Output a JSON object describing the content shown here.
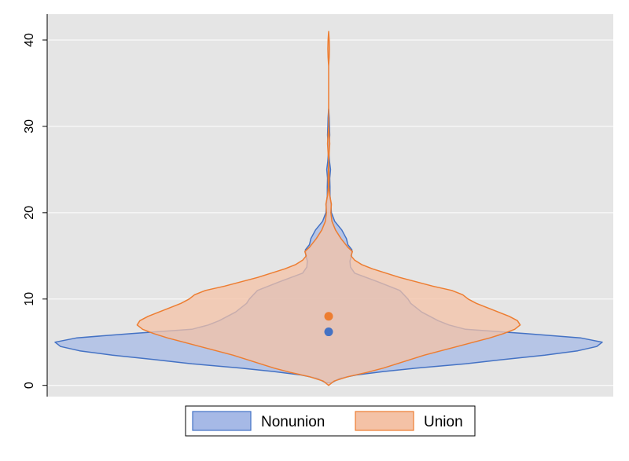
{
  "chart_data": {
    "type": "violin",
    "title": "",
    "xlabel": "",
    "ylabel": "",
    "ylim": [
      -1.3,
      43
    ],
    "yticks": [
      0,
      10,
      20,
      30,
      40
    ],
    "grid": true,
    "legend_position": "bottom",
    "series": [
      {
        "name": "Nonunion",
        "color": "#4472C4",
        "fill_color": "#A6B9E6",
        "median": 6.2,
        "profile": [
          [
            0.3,
            0.01
          ],
          [
            0.8,
            0.04
          ],
          [
            1.2,
            0.1
          ],
          [
            1.6,
            0.2
          ],
          [
            2.0,
            0.32
          ],
          [
            2.5,
            0.5
          ],
          [
            3.0,
            0.64
          ],
          [
            3.5,
            0.79
          ],
          [
            4.0,
            0.91
          ],
          [
            4.5,
            0.98
          ],
          [
            5.0,
            1.0
          ],
          [
            5.5,
            0.92
          ],
          [
            6.0,
            0.72
          ],
          [
            6.5,
            0.5
          ],
          [
            7.0,
            0.44
          ],
          [
            7.5,
            0.4
          ],
          [
            8.0,
            0.37
          ],
          [
            8.5,
            0.34
          ],
          [
            9.0,
            0.32
          ],
          [
            9.5,
            0.3
          ],
          [
            10.0,
            0.29
          ],
          [
            11.0,
            0.26
          ],
          [
            12.0,
            0.18
          ],
          [
            13.0,
            0.095
          ],
          [
            13.7,
            0.08
          ],
          [
            14.4,
            0.078
          ],
          [
            15.0,
            0.083
          ],
          [
            15.7,
            0.085
          ],
          [
            16.3,
            0.07
          ],
          [
            17.0,
            0.065
          ],
          [
            18.0,
            0.048
          ],
          [
            19.0,
            0.022
          ],
          [
            20.0,
            0.01
          ],
          [
            21.0,
            0.008
          ],
          [
            22.0,
            0.005
          ],
          [
            23.0,
            0.005
          ],
          [
            24.0,
            0.004
          ],
          [
            25.0,
            0.007
          ],
          [
            26.0,
            0.003
          ],
          [
            27.0,
            0.001
          ],
          [
            28.0,
            0.002
          ],
          [
            29.0,
            0.004
          ],
          [
            30.0,
            0.003
          ],
          [
            31.0,
            0.002
          ],
          [
            32.0,
            0.0
          ]
        ]
      },
      {
        "name": "Union",
        "color": "#ED7D31",
        "fill_color": "#F4C2A6",
        "median": 8.0,
        "profile": [
          [
            0.0,
            0.0
          ],
          [
            0.5,
            0.02
          ],
          [
            1.0,
            0.07
          ],
          [
            1.5,
            0.14
          ],
          [
            2.0,
            0.2
          ],
          [
            2.5,
            0.25
          ],
          [
            3.0,
            0.3
          ],
          [
            3.5,
            0.35
          ],
          [
            4.0,
            0.41
          ],
          [
            4.5,
            0.47
          ],
          [
            5.0,
            0.53
          ],
          [
            5.5,
            0.59
          ],
          [
            6.0,
            0.64
          ],
          [
            6.5,
            0.68
          ],
          [
            7.0,
            0.7
          ],
          [
            7.5,
            0.69
          ],
          [
            8.0,
            0.66
          ],
          [
            8.5,
            0.62
          ],
          [
            9.0,
            0.58
          ],
          [
            9.5,
            0.54
          ],
          [
            10.0,
            0.51
          ],
          [
            10.5,
            0.49
          ],
          [
            11.0,
            0.45
          ],
          [
            11.5,
            0.38
          ],
          [
            12.0,
            0.32
          ],
          [
            12.5,
            0.26
          ],
          [
            13.0,
            0.21
          ],
          [
            13.5,
            0.16
          ],
          [
            14.0,
            0.12
          ],
          [
            14.5,
            0.095
          ],
          [
            15.0,
            0.082
          ],
          [
            15.5,
            0.087
          ],
          [
            16.0,
            0.07
          ],
          [
            17.0,
            0.045
          ],
          [
            18.0,
            0.025
          ],
          [
            19.0,
            0.012
          ],
          [
            20.0,
            0.008
          ],
          [
            20.5,
            0.009
          ],
          [
            21.0,
            0.01
          ],
          [
            22.0,
            0.004
          ],
          [
            23.0,
            0.001
          ],
          [
            24.0,
            0.002
          ],
          [
            25.0,
            0.001
          ],
          [
            26.0,
            0.0
          ],
          [
            27.0,
            0.002
          ],
          [
            28.0,
            0.004
          ],
          [
            29.0,
            0.002
          ],
          [
            30.0,
            0.0
          ],
          [
            37.0,
            0.0
          ],
          [
            38.0,
            0.002
          ],
          [
            39.0,
            0.003
          ],
          [
            40.0,
            0.002
          ],
          [
            41.0,
            0.0
          ]
        ]
      }
    ]
  }
}
